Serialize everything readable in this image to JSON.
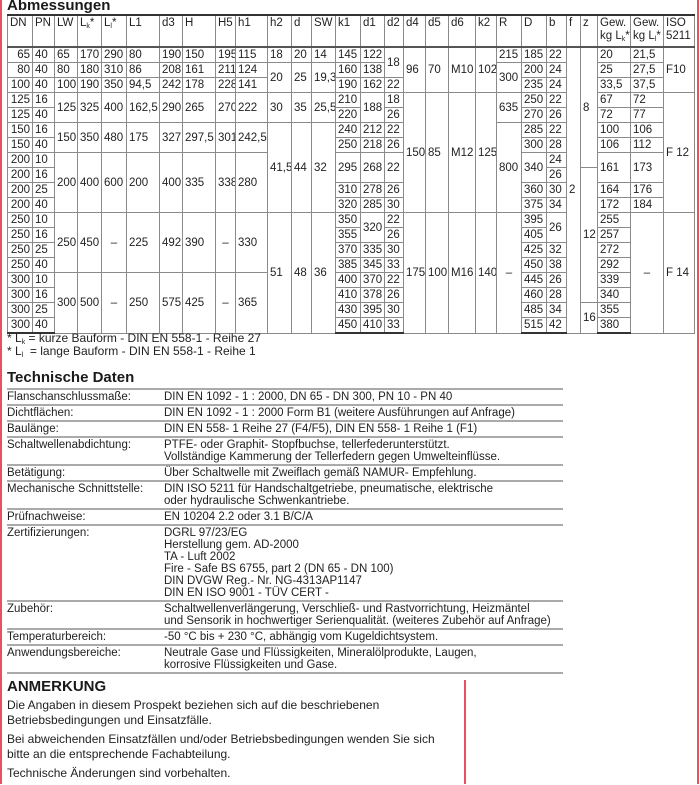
{
  "colors": {
    "border_red": "#e8505b",
    "line": "#8a8a8a"
  },
  "dimensions": {
    "title": "Abmessungen",
    "header": [
      {
        "t": "DN"
      },
      {
        "t": "PN"
      },
      {
        "t": "LW"
      },
      {
        "t": "L",
        "sub": "k",
        "post": "*"
      },
      {
        "t": "L",
        "sub": "l",
        "post": "*"
      },
      {
        "t": "L1"
      },
      {
        "t": "d3"
      },
      {
        "t": "H"
      },
      {
        "t": "H5"
      },
      {
        "t": "h1"
      },
      {
        "t": "h2"
      },
      {
        "t": "d"
      },
      {
        "t": "SW"
      },
      {
        "t": "k1"
      },
      {
        "t": "d1"
      },
      {
        "t": "d2"
      },
      {
        "t": "d4"
      },
      {
        "t": "d5"
      },
      {
        "t": "d6"
      },
      {
        "t": "k2"
      },
      {
        "t": "R"
      },
      {
        "t": "D"
      },
      {
        "t": "b"
      },
      {
        "t": "f"
      },
      {
        "t": "z"
      },
      {
        "t": "Gew.",
        "t2": "kg L",
        "sub": "k",
        "post": "*"
      },
      {
        "t": "Gew.",
        "t2": "kg L",
        "sub": "l",
        "post": "*"
      },
      {
        "t": "ISO",
        "t2": "5211"
      }
    ],
    "rows": [
      [
        "65",
        "40",
        "65",
        "170",
        "290",
        "80",
        "190",
        "150",
        "195",
        "115",
        "18",
        "20",
        "14",
        "145",
        "122",
        [
          "18",
          2
        ],
        [
          "96",
          3
        ],
        [
          "70",
          3
        ],
        [
          "M10",
          3
        ],
        [
          "102",
          3
        ],
        "215",
        "185",
        "22",
        [
          "2",
          19
        ],
        [
          "8",
          8
        ],
        "20",
        "21,5",
        [
          "F10",
          3
        ]
      ],
      [
        "80",
        "40",
        "80",
        "180",
        "310",
        "86",
        "208",
        "161",
        "211",
        "124",
        [
          "20",
          2
        ],
        [
          "25",
          2
        ],
        [
          "19,3",
          2
        ],
        "160",
        "138",
        [
          "300",
          2
        ],
        "200",
        "24",
        "25",
        "27,5"
      ],
      [
        "100",
        "40",
        "100",
        "190",
        "350",
        "94,5",
        "242",
        "178",
        "228",
        "141",
        "190",
        "162",
        "22",
        "235",
        "24",
        "33,5",
        "37,5"
      ],
      [
        "125",
        "16",
        [
          "125",
          2
        ],
        [
          "325",
          2
        ],
        [
          "400",
          2
        ],
        [
          "162,5",
          2
        ],
        [
          "290",
          2
        ],
        [
          "265",
          2
        ],
        [
          "270",
          2
        ],
        [
          "222",
          2
        ],
        [
          "30",
          2
        ],
        [
          "35",
          2
        ],
        [
          "25,5",
          2
        ],
        "210",
        [
          "188",
          2
        ],
        "18",
        [
          "150",
          8
        ],
        [
          "85",
          8
        ],
        [
          "M12",
          8
        ],
        [
          "125",
          8
        ],
        [
          "635",
          2
        ],
        "250",
        "22",
        "67",
        "72",
        [
          "F 12",
          8
        ]
      ],
      [
        "125",
        "40",
        "220",
        "26",
        "270",
        "26",
        "72",
        "77"
      ],
      [
        "150",
        "16",
        [
          "150",
          2
        ],
        [
          "350",
          2
        ],
        [
          "480",
          2
        ],
        [
          "175",
          2
        ],
        [
          "327",
          2
        ],
        [
          "297,5",
          2
        ],
        [
          "301",
          2
        ],
        [
          "242,5",
          2
        ],
        [
          "41,5",
          6
        ],
        [
          "44",
          6
        ],
        [
          "32",
          6
        ],
        "240",
        "212",
        "22",
        [
          "800",
          6
        ],
        "285",
        "22",
        "100",
        "106"
      ],
      [
        "150",
        "40",
        "250",
        "218",
        "26",
        "300",
        "28",
        "106",
        "112"
      ],
      [
        "200",
        "10",
        [
          "200",
          4
        ],
        [
          "400",
          4
        ],
        [
          "600",
          4
        ],
        [
          "200",
          4
        ],
        [
          "400",
          4
        ],
        [
          "335",
          4
        ],
        [
          "338",
          4
        ],
        [
          "280",
          4
        ],
        [
          "295",
          2
        ],
        [
          "268",
          2
        ],
        [
          "22",
          2
        ],
        [
          "340",
          2
        ],
        "24",
        [
          "161",
          2
        ],
        [
          "173",
          2
        ]
      ],
      [
        "200",
        "16",
        "26",
        [
          "12",
          9
        ]
      ],
      [
        "200",
        "25",
        "310",
        "278",
        "26",
        "360",
        "30",
        "164",
        "176"
      ],
      [
        "200",
        "40",
        "320",
        "285",
        "30",
        "375",
        "34",
        "172",
        "184"
      ],
      [
        "250",
        "10",
        [
          "250",
          4
        ],
        [
          "450",
          4
        ],
        [
          "–",
          4
        ],
        [
          "225",
          4
        ],
        [
          "492",
          4
        ],
        [
          "390",
          4
        ],
        [
          "–",
          4
        ],
        [
          "330",
          4
        ],
        [
          "51",
          8
        ],
        [
          "48",
          8
        ],
        [
          "36",
          8
        ],
        "350",
        [
          "320",
          2
        ],
        "22",
        [
          "175",
          8
        ],
        [
          "100",
          8
        ],
        [
          "M16",
          8
        ],
        [
          "140",
          8
        ],
        [
          "–",
          8
        ],
        "395",
        [
          "26",
          2
        ],
        "255",
        [
          "–",
          8
        ],
        [
          "F 14",
          8
        ]
      ],
      [
        "250",
        "16",
        "355",
        "26",
        "405",
        "257"
      ],
      [
        "250",
        "25",
        "370",
        "335",
        "30",
        "425",
        "32",
        "272"
      ],
      [
        "250",
        "40",
        "385",
        "345",
        "33",
        "450",
        "38",
        "292"
      ],
      [
        "300",
        "10",
        [
          "300",
          4
        ],
        [
          "500",
          4
        ],
        [
          "–",
          4
        ],
        [
          "250",
          4
        ],
        [
          "575",
          4
        ],
        [
          "425",
          4
        ],
        [
          "–",
          4
        ],
        [
          "365",
          4
        ],
        "400",
        "370",
        "22",
        "445",
        "26",
        "339"
      ],
      [
        "300",
        "16",
        "410",
        "378",
        "26",
        "460",
        "28",
        "340"
      ],
      [
        "300",
        "25",
        "430",
        "395",
        "30",
        "485",
        "34",
        [
          "16",
          2
        ],
        "355"
      ],
      [
        "300",
        "40",
        "450",
        "410",
        "33",
        "515",
        "42",
        "380"
      ]
    ],
    "footnotes": [
      {
        "pre": "* L",
        "sub": "k",
        "text": " = kurze Bauform - DIN EN 558-1 - Reihe 27"
      },
      {
        "pre": "* L",
        "sub": "l",
        "text": "  = lange Bauform - DIN EN 558-1 - Reihe 1"
      }
    ]
  },
  "technical": {
    "title": "Technische Daten",
    "rows": [
      {
        "label": "Flanschanschlussmaße:",
        "lines": [
          "DIN EN 1092 - 1 : 2000, DN 65 - DN 300, PN 10 - PN 40"
        ]
      },
      {
        "label": "Dichtflächen:",
        "lines": [
          "DIN EN 1092 - 1 : 2000 Form B1 (weitere Ausführungen auf Anfrage)"
        ]
      },
      {
        "label": "Baulänge:",
        "lines": [
          "DIN EN 558- 1 Reihe 27 (F4/F5), DIN EN 558- 1 Reihe 1 (F1)"
        ]
      },
      {
        "label": "Schaltwellenabdichtung:",
        "lines": [
          "PTFE- oder Graphit- Stopfbuchse, tellerfederunterstützt.",
          "Vollständige Kammerung der Tellerfedern gegen Umwelteinflüsse."
        ]
      },
      {
        "label": "Betätigung:",
        "lines": [
          "Über Schaltwelle mit Zweiflach gemäß NAMUR- Empfehlung."
        ]
      },
      {
        "label": "Mechanische Schnittstelle:",
        "lines": [
          "DIN ISO 5211 für Handschaltgetriebe, pneumatische, elektrische",
          "oder hydraulische Schwenkantriebe."
        ]
      },
      {
        "label": "Prüfnachweise:",
        "lines": [
          "EN 10204 2.2 oder 3.1 B/C/A"
        ]
      },
      {
        "label": "Zertifizierungen:",
        "lines": [
          "DGRL 97/23/EG",
          "Herstellung gem. AD-2000",
          "TA - Luft 2002",
          "Fire - Safe BS 6755, part 2 (DN 65 - DN 100)",
          "DIN DVGW Reg.- Nr. NG-4313AP1147",
          "DIN EN ISO 9001 - TÜV CERT -"
        ]
      },
      {
        "label": "Zubehör:",
        "lines": [
          "Schaltwellenverlängerung, Verschließ- und Rastvorrichtung, Heizmäntel",
          "und Sensorik in hochwertiger Serienqualität. (weiteres Zubehör auf Anfrage)"
        ]
      },
      {
        "label": "Temperaturbereich:",
        "lines": [
          "-50 °C bis + 230 °C, abhängig vom Kugeldichtsystem."
        ]
      },
      {
        "label": "Anwendungsbereiche:",
        "lines": [
          "Neutrale Gase und Flüssigkeiten, Mineralölprodukte, Laugen,",
          "korrosive Flüssigkeiten und Gase."
        ]
      }
    ]
  },
  "note": {
    "title": "ANMERKUNG",
    "paragraphs": [
      "Die Angaben in diesem Prospekt beziehen sich auf die beschriebenen Betriebsbedingungen und Einsatzfälle.",
      "Bei abweichenden Einsatzfällen und/oder Betriebsbedingungen wenden Sie sich bitte an die entsprechende Fachabteilung.",
      "Technische Änderungen sind vorbehalten."
    ]
  }
}
